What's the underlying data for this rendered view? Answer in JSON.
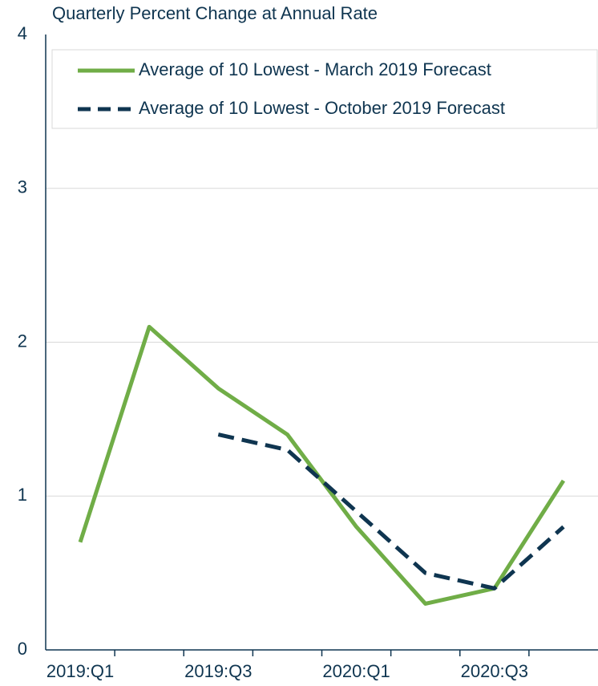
{
  "chart_data": {
    "type": "line",
    "title": "Quarterly Percent Change at Annual Rate",
    "categories": [
      "2019:Q1",
      null,
      "2019:Q3",
      null,
      "2020:Q1",
      null,
      "2020:Q3",
      null
    ],
    "series": [
      {
        "name": "Average of 10 Lowest - March 2019 Forecast",
        "color": "#70ad47",
        "dash": false,
        "values": [
          0.7,
          2.1,
          1.7,
          1.4,
          0.8,
          0.3,
          0.4,
          1.1
        ]
      },
      {
        "name": "Average of 10 Lowest - October 2019 Forecast",
        "color": "#0f3550",
        "dash": true,
        "values": [
          null,
          null,
          1.4,
          1.3,
          0.9,
          0.5,
          0.4,
          0.8
        ]
      }
    ],
    "ylim": [
      0,
      4
    ],
    "yticks": [
      0,
      1,
      2,
      3,
      4
    ],
    "grid": true,
    "legend": "top"
  }
}
